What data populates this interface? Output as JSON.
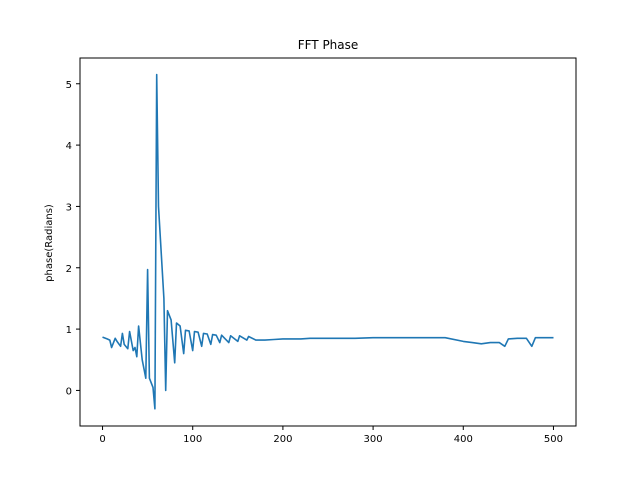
{
  "chart_data": {
    "type": "line",
    "title": "FFT Phase",
    "xlabel": "",
    "ylabel": "phase(Radians)",
    "xlim": [
      -25,
      525
    ],
    "ylim": [
      -0.58,
      5.42
    ],
    "xticks": [
      0,
      100,
      200,
      300,
      400,
      500
    ],
    "yticks": [
      0,
      1,
      2,
      3,
      4,
      5
    ],
    "grid": false,
    "series": [
      {
        "color": "#1f77b4",
        "x": [
          0,
          5,
          8,
          10,
          14,
          16,
          20,
          22,
          24,
          28,
          30,
          34,
          36,
          38,
          40,
          44,
          46,
          48,
          50,
          52,
          56,
          58,
          60,
          62,
          66,
          68,
          70,
          72,
          76,
          80,
          82,
          86,
          90,
          92,
          96,
          100,
          102,
          106,
          110,
          112,
          116,
          120,
          122,
          126,
          130,
          132,
          140,
          142,
          150,
          152,
          160,
          162,
          170,
          180,
          190,
          200,
          210,
          220,
          230,
          240,
          250,
          260,
          280,
          300,
          320,
          340,
          360,
          380,
          400,
          410,
          420,
          430,
          440,
          446,
          450,
          460,
          470,
          476,
          480,
          490,
          500
        ],
        "y": [
          0.87,
          0.84,
          0.82,
          0.7,
          0.85,
          0.8,
          0.72,
          0.93,
          0.75,
          0.68,
          0.96,
          0.65,
          0.7,
          0.55,
          1.05,
          0.5,
          0.35,
          0.2,
          1.97,
          0.2,
          0.05,
          -0.3,
          5.15,
          3.0,
          2.0,
          1.5,
          0.0,
          1.3,
          1.15,
          0.45,
          1.1,
          1.05,
          0.6,
          0.98,
          0.97,
          0.65,
          0.96,
          0.95,
          0.72,
          0.93,
          0.92,
          0.75,
          0.91,
          0.9,
          0.78,
          0.9,
          0.78,
          0.89,
          0.8,
          0.89,
          0.82,
          0.88,
          0.82,
          0.82,
          0.83,
          0.84,
          0.84,
          0.84,
          0.85,
          0.85,
          0.85,
          0.85,
          0.85,
          0.86,
          0.86,
          0.86,
          0.86,
          0.86,
          0.8,
          0.78,
          0.76,
          0.78,
          0.78,
          0.72,
          0.84,
          0.85,
          0.85,
          0.72,
          0.86,
          0.86,
          0.86
        ]
      }
    ]
  }
}
